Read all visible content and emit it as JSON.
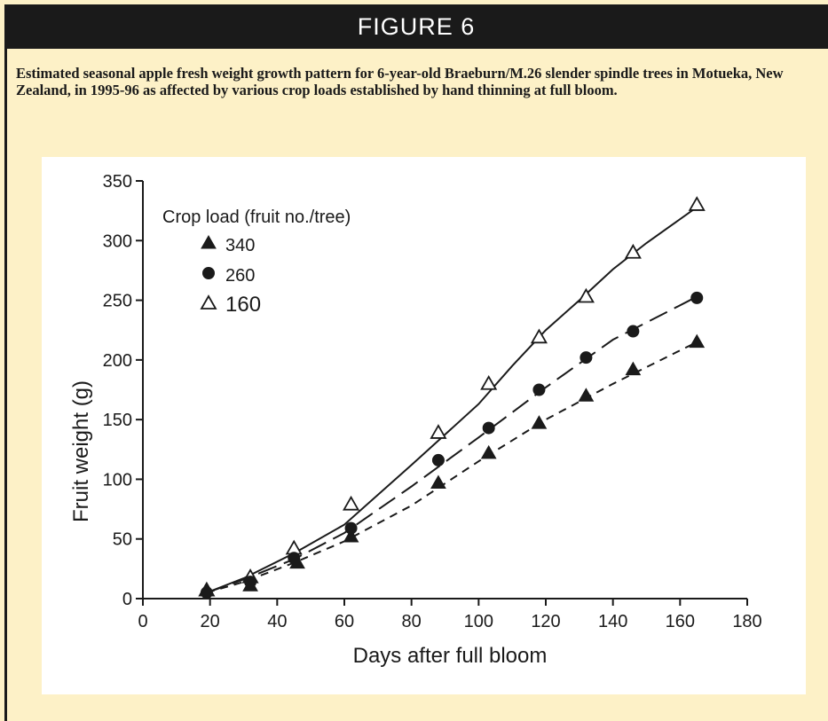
{
  "header": {
    "title": "FIGURE 6"
  },
  "caption": "Estimated seasonal apple fresh weight growth pattern for 6-year-old Braeburn/M.26 slender spindle trees in Motueka, New Zealand, in 1995-96 as affected by various crop loads established by hand thinning at full bloom.",
  "colors": {
    "background": "#fdf1c7",
    "header": "#1a1a1a",
    "plot": "#ffffff",
    "ink": "#1a1a1a"
  },
  "chart_data": {
    "type": "line",
    "xlabel": "Days after full bloom",
    "ylabel": "Fruit weight (g)",
    "xlim": [
      0,
      180
    ],
    "ylim": [
      0,
      350
    ],
    "xticks": [
      0,
      20,
      40,
      60,
      80,
      100,
      120,
      140,
      160,
      180
    ],
    "yticks": [
      0,
      50,
      100,
      150,
      200,
      250,
      300,
      350
    ],
    "grid": false,
    "legend": {
      "title": "Crop load (fruit no./tree)",
      "placement": "top-left"
    },
    "series": [
      {
        "name": "340",
        "marker": "filled-triangle",
        "line": "short-dash",
        "points": [
          [
            19,
            7
          ],
          [
            32,
            11
          ],
          [
            46,
            30
          ],
          [
            62,
            52
          ],
          [
            88,
            97
          ],
          [
            103,
            122
          ],
          [
            118,
            147
          ],
          [
            132,
            170
          ],
          [
            146,
            192
          ],
          [
            165,
            215
          ]
        ],
        "fit": [
          [
            19,
            5
          ],
          [
            30,
            14
          ],
          [
            45,
            30
          ],
          [
            60,
            48
          ],
          [
            80,
            78
          ],
          [
            100,
            115
          ],
          [
            120,
            150
          ],
          [
            140,
            180
          ],
          [
            165,
            215
          ]
        ]
      },
      {
        "name": "260",
        "marker": "filled-circle",
        "line": "long-dash",
        "points": [
          [
            19,
            5
          ],
          [
            32,
            14
          ],
          [
            45,
            34
          ],
          [
            62,
            59
          ],
          [
            88,
            116
          ],
          [
            103,
            143
          ],
          [
            118,
            175
          ],
          [
            132,
            202
          ],
          [
            146,
            224
          ],
          [
            165,
            252
          ]
        ],
        "fit": [
          [
            19,
            5
          ],
          [
            30,
            16
          ],
          [
            45,
            33
          ],
          [
            60,
            55
          ],
          [
            80,
            94
          ],
          [
            100,
            135
          ],
          [
            120,
            177
          ],
          [
            140,
            217
          ],
          [
            165,
            253
          ]
        ]
      },
      {
        "name": "160",
        "marker": "open-triangle",
        "line": "solid",
        "points": [
          [
            19,
            7
          ],
          [
            32,
            18
          ],
          [
            45,
            42
          ],
          [
            62,
            79
          ],
          [
            88,
            139
          ],
          [
            103,
            180
          ],
          [
            118,
            219
          ],
          [
            132,
            253
          ],
          [
            146,
            290
          ],
          [
            165,
            330
          ]
        ],
        "fit": [
          [
            19,
            5
          ],
          [
            30,
            17
          ],
          [
            45,
            38
          ],
          [
            60,
            62
          ],
          [
            80,
            112
          ],
          [
            100,
            163
          ],
          [
            110,
            195
          ],
          [
            120,
            225
          ],
          [
            130,
            250
          ],
          [
            140,
            276
          ],
          [
            150,
            298
          ],
          [
            165,
            328
          ]
        ]
      }
    ]
  }
}
